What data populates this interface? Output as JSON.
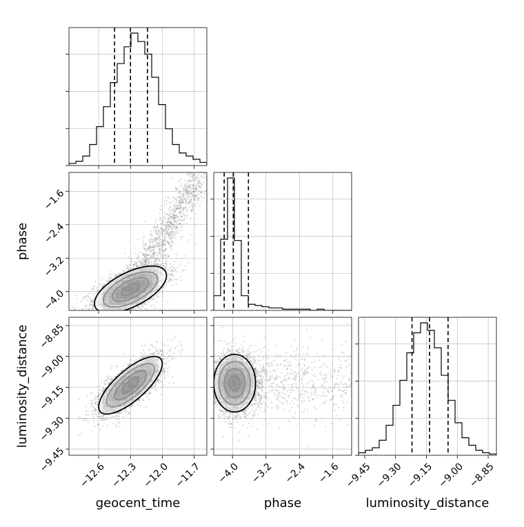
{
  "chart_data": {
    "type": "corner",
    "parameters": [
      "geocent_time",
      "phase",
      "luminosity_distance"
    ],
    "labels": {
      "x": [
        "geocent_time",
        "phase",
        "luminosity_distance"
      ],
      "y": [
        "",
        "phase",
        "luminosity_distance"
      ]
    },
    "ranges": {
      "geocent_time": [
        -12.88,
        -11.58
      ],
      "phase": [
        -4.45,
        -1.15
      ],
      "luminosity_distance": [
        -9.48,
        -8.81
      ]
    },
    "ticks": {
      "geocent_time": [
        -12.6,
        -12.3,
        -12.0,
        -11.7
      ],
      "phase": [
        -4.0,
        -3.2,
        -2.4,
        -1.6
      ],
      "luminosity_distance": [
        -9.45,
        -9.3,
        -9.15,
        -9.0,
        -8.85
      ]
    },
    "tick_labels": {
      "geocent_time": [
        "−12.6",
        "−12.3",
        "−12.0",
        "−11.7"
      ],
      "phase": [
        "−4.0",
        "−3.2",
        "−2.4",
        "−1.6"
      ],
      "luminosity_distance": [
        "−9.45",
        "−9.30",
        "−9.15",
        "−9.00",
        "−8.85"
      ]
    },
    "quantiles": {
      "geocent_time": [
        -12.45,
        -12.3,
        -12.14
      ],
      "phase": [
        -4.2,
        -3.98,
        -3.62
      ],
      "luminosity_distance": [
        -9.22,
        -9.135,
        -9.045
      ]
    },
    "histograms": {
      "geocent_time": {
        "start": -12.88,
        "bin_width": 0.065,
        "counts": [
          2,
          4,
          9,
          20,
          37,
          56,
          79,
          97,
          113,
          126,
          118,
          106,
          84,
          58,
          35,
          20,
          12,
          9,
          6,
          3,
          1
        ]
      },
      "phase": {
        "start": -4.45,
        "bin_width": 0.165,
        "counts": [
          12,
          58,
          108,
          57,
          12,
          5,
          4,
          3,
          2,
          2,
          1,
          1,
          1,
          1,
          0,
          1,
          0,
          0,
          0,
          0
        ]
      },
      "luminosity_distance": {
        "start": -9.48,
        "bin_width": 0.0335,
        "counts": [
          2,
          4,
          6,
          12,
          24,
          40,
          60,
          82,
          98,
          106,
          100,
          86,
          64,
          44,
          26,
          14,
          8,
          4,
          2,
          1
        ]
      }
    },
    "pairs": [
      {
        "x": "geocent_time",
        "y": "phase",
        "mean": [
          -12.3,
          -3.95
        ],
        "sd": [
          0.17,
          0.28
        ],
        "rho": 0.6,
        "tail": "upper-right"
      },
      {
        "x": "geocent_time",
        "y": "luminosity_distance",
        "mean": [
          -12.3,
          -9.14
        ],
        "sd": [
          0.15,
          0.07
        ],
        "rho": 0.75,
        "tail": "none"
      },
      {
        "x": "phase",
        "y": "luminosity_distance",
        "mean": [
          -3.95,
          -9.13
        ],
        "sd": [
          0.25,
          0.07
        ],
        "rho": 0.0,
        "tail": "right"
      }
    ],
    "contour_levels_sigma": [
      0.5,
      1.0,
      1.5,
      2.0
    ],
    "grid": true,
    "colors": {
      "scatter": "#8c8c8c",
      "density": "#000000",
      "line": "#000000",
      "grid": "#b0b0b0"
    }
  }
}
